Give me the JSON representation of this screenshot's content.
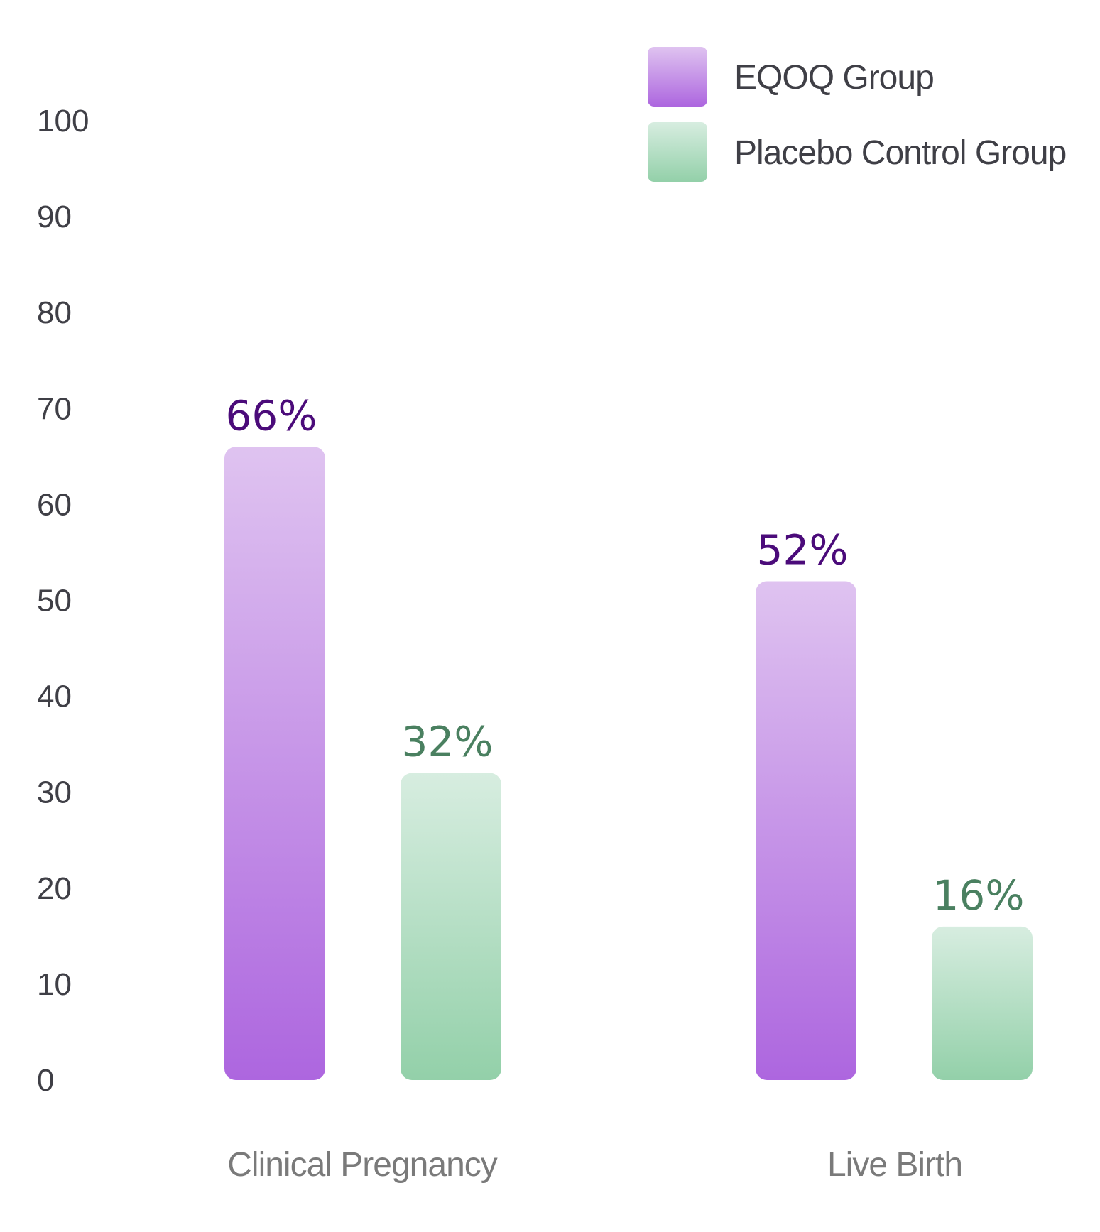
{
  "chart_data": {
    "type": "bar",
    "title": "",
    "xlabel": "",
    "ylabel": "",
    "ylim": [
      0,
      100
    ],
    "yticks": [
      0,
      10,
      20,
      30,
      40,
      50,
      60,
      70,
      80,
      90,
      100
    ],
    "grid": false,
    "legend_position": "top-right",
    "categories": [
      "Clinical Pregnancy",
      "Live Birth"
    ],
    "series": [
      {
        "name": "EQOQ Group",
        "values": [
          66,
          52
        ],
        "data_labels": [
          "66%",
          "52%"
        ],
        "color_top": "#dfc3f0",
        "color_bottom": "#ad66df",
        "label_color": "#4b0b7a"
      },
      {
        "name": "Placebo Control Group",
        "values": [
          32,
          16
        ],
        "data_labels": [
          "32%",
          "16%"
        ],
        "color_top": "#d7ede0",
        "color_bottom": "#93d0a9",
        "label_color": "#4a8060"
      }
    ]
  }
}
